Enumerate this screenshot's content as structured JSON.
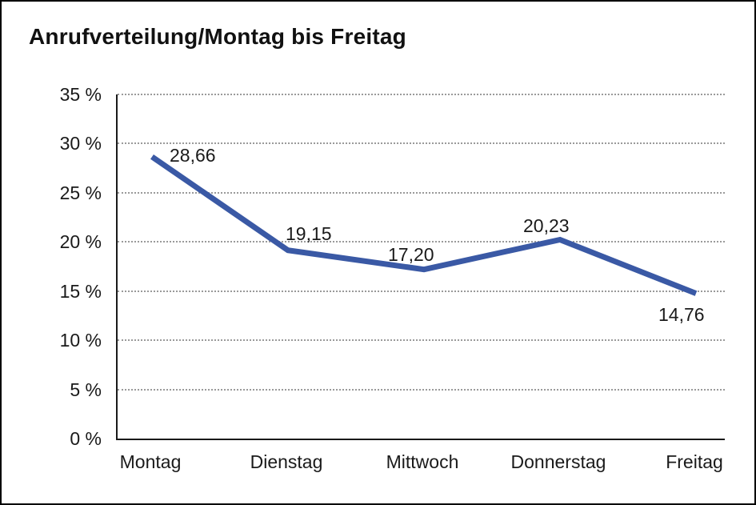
{
  "title": "Anrufverteilung/Montag bis Freitag",
  "chart_data": {
    "type": "line",
    "title": "Anrufverteilung/Montag bis Freitag",
    "categories": [
      "Montag",
      "Dienstag",
      "Mittwoch",
      "Donnerstag",
      "Freitag"
    ],
    "values": [
      28.66,
      19.15,
      17.2,
      20.23,
      14.76
    ],
    "data_labels": [
      "28,66",
      "19,15",
      "17,20",
      "20,23",
      "14,76"
    ],
    "y_tick_values": [
      0,
      5,
      10,
      15,
      20,
      25,
      30,
      35
    ],
    "y_tick_labels": [
      "0 %",
      "5 %",
      "10 %",
      "15 %",
      "20 %",
      "25 %",
      "30 %",
      "35 %"
    ],
    "xlabel": "",
    "ylabel": "",
    "ylim": [
      0,
      35
    ],
    "grid": "horizontal-dotted",
    "legend_position": "none",
    "line_color": "#3A59A5",
    "axis_color": "#1a1a1a",
    "grid_color": "#9a9a9a",
    "background_color": "#ffffff"
  }
}
